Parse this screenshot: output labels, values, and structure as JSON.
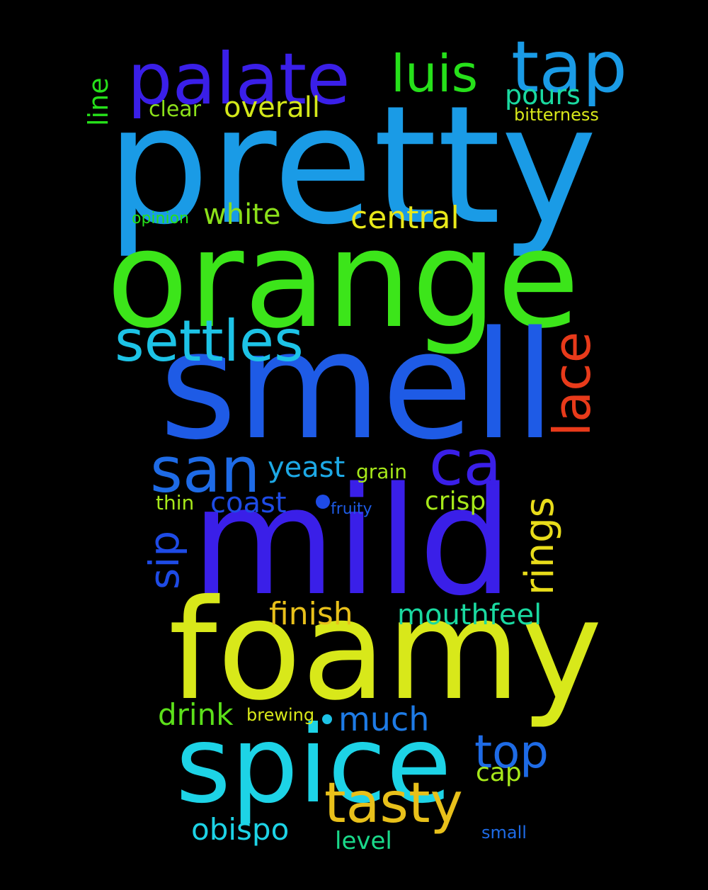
{
  "cloud": {
    "background": "#000000",
    "words": {
      "pretty": {
        "text": "pretty",
        "color": "#1a9be6"
      },
      "orange": {
        "text": "orange",
        "color": "#3ce51a"
      },
      "smell": {
        "text": "smell",
        "color": "#1e5be6"
      },
      "mild": {
        "text": "mild",
        "color": "#3a1fe8"
      },
      "foamy": {
        "text": "foamy",
        "color": "#d8e81a"
      },
      "spice": {
        "text": "spice",
        "color": "#1dd3e6"
      },
      "palate": {
        "text": "palate",
        "color": "#3a1fe8"
      },
      "tap": {
        "text": "tap",
        "color": "#1a9be6"
      },
      "luis": {
        "text": "luis",
        "color": "#26e01a"
      },
      "settles": {
        "text": "settles",
        "color": "#1dc3e6"
      },
      "san": {
        "text": "san",
        "color": "#1e6be6"
      },
      "ca": {
        "text": "ca",
        "color": "#3a1fe8"
      },
      "tasty": {
        "text": "tasty",
        "color": "#e8c01a"
      },
      "top": {
        "text": "top",
        "color": "#1e6be6"
      },
      "lace": {
        "text": "lace",
        "color": "#e83a1a"
      },
      "rings": {
        "text": "rings",
        "color": "#e8dc1a"
      },
      "sip": {
        "text": "sip",
        "color": "#1e4be6"
      },
      "line": {
        "text": "line",
        "color": "#26e01a"
      },
      "pours": {
        "text": "pours",
        "color": "#1ad9a0"
      },
      "clear": {
        "text": "clear",
        "color": "#8be01a"
      },
      "overall": {
        "text": "overall",
        "color": "#d4e81a"
      },
      "bitterness": {
        "text": "bitterness",
        "color": "#d8e81a"
      },
      "opinion": {
        "text": "opinion",
        "color": "#26e01a"
      },
      "white": {
        "text": "white",
        "color": "#8be01a"
      },
      "central": {
        "text": "central",
        "color": "#e8e81a"
      },
      "yeast": {
        "text": "yeast",
        "color": "#1da9e6"
      },
      "grain": {
        "text": "grain",
        "color": "#a6e81a"
      },
      "coast": {
        "text": "coast",
        "color": "#1e4be6"
      },
      "thin": {
        "text": "thin",
        "color": "#a6e81a"
      },
      "fruity": {
        "text": "fruity",
        "color": "#1e5be6"
      },
      "crisp": {
        "text": "crisp",
        "color": "#a6e81a"
      },
      "finish": {
        "text": "finish",
        "color": "#e8c01a"
      },
      "mouthfeel": {
        "text": "mouthfeel",
        "color": "#1ad9a0"
      },
      "drink": {
        "text": "drink",
        "color": "#5ce01a"
      },
      "brewing": {
        "text": "brewing",
        "color": "#d8e81a"
      },
      "much": {
        "text": "much",
        "color": "#1e7be6"
      },
      "cap": {
        "text": "cap",
        "color": "#a6e81a"
      },
      "obispo": {
        "text": "obispo",
        "color": "#1dd3e6"
      },
      "level": {
        "text": "level",
        "color": "#1ad98a"
      },
      "small": {
        "text": "small",
        "color": "#1e6be6"
      }
    },
    "dots": {
      "dot1": {
        "color": "#1e4be6"
      },
      "dot2": {
        "color": "#1dc3e6"
      }
    }
  }
}
